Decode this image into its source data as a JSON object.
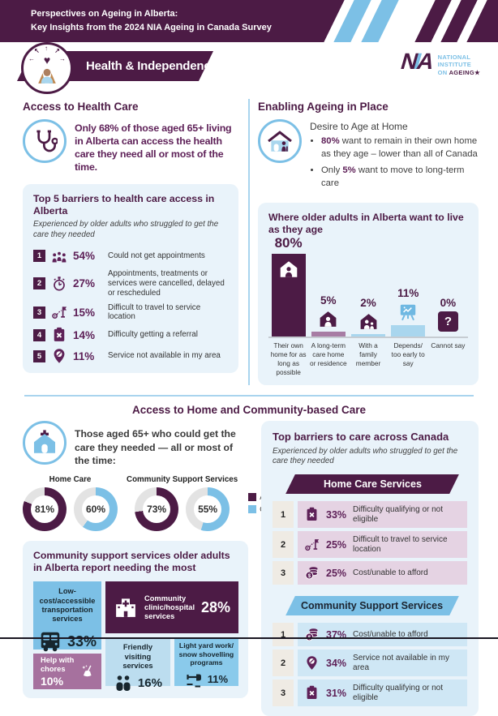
{
  "header": {
    "line1": "Perspectives on Ageing in Alberta:",
    "line2": "Key Insights from the 2024 NIA Ageing in Canada Survey"
  },
  "banner": {
    "title": "Health & Independence"
  },
  "logo": {
    "n": "N",
    "i": "I",
    "a": "A",
    "word1": "NATIONAL",
    "word2": "INSTITUTE",
    "word3_pre": "ON ",
    "word3_bold": "AGEING★"
  },
  "access_health_care": {
    "title": "Access to Health Care",
    "statement": "Only 68% of those aged 65+ living in Alberta can access the health care they need all or most of the time.",
    "barriers": {
      "title": "Top 5 barriers to health care access in Alberta",
      "subtitle": "Experienced by older adults who struggled to get the care they needed",
      "items": [
        {
          "rank": "1",
          "icon": "people-icon",
          "pct": "54%",
          "label": "Could not get appointments"
        },
        {
          "rank": "2",
          "icon": "stopwatch-icon",
          "pct": "27%",
          "label": "Appointments, treatments or services were cancelled, delayed or rescheduled"
        },
        {
          "rank": "3",
          "icon": "travel-route-icon",
          "pct": "15%",
          "label": "Difficult to travel to service location"
        },
        {
          "rank": "4",
          "icon": "clipboard-x-icon",
          "pct": "14%",
          "label": "Difficulty getting a referral"
        },
        {
          "rank": "5",
          "icon": "pin-slash-icon",
          "pct": "11%",
          "label": "Service not available in my area"
        }
      ]
    }
  },
  "ageing_in_place": {
    "title": "Enabling Ageing in Place",
    "lead": "Desire to Age at Home",
    "bullets": [
      {
        "pre": "",
        "bold": "80%",
        "post": " want to remain in their own home as they age – lower than all of Canada"
      },
      {
        "pre": "Only ",
        "bold": "5%",
        "post": " want to move to long-term care"
      }
    ]
  },
  "mid_title": "Access to Home and Community-based Care",
  "home_community": {
    "statement": "Those aged 65+ who could get the care they needed — all or most of the time:",
    "needs_box": {
      "title": "Community support services older adults in Alberta report needing the most",
      "tiles": [
        {
          "label": "Low-cost/accessible transportation services",
          "pct": "33%",
          "icon": "bus-icon"
        },
        {
          "label": "Community clinic/hospital services",
          "pct": "28%",
          "icon": "hospital-icon"
        },
        {
          "label": "Help with chores",
          "pct": "10%",
          "icon": "broom-icon"
        },
        {
          "label": "Friendly visiting services",
          "pct": "16%",
          "icon": "two-people-icon"
        },
        {
          "label": "Light yard work/ snow shovelling programs",
          "pct": "11%",
          "icon": "shovel-icon"
        }
      ]
    }
  },
  "canada_barriers": {
    "title": "Top barriers to care across Canada",
    "subtitle": "Experienced by older adults who struggled to get the care they needed",
    "home_care": {
      "banner": "Home Care Services",
      "items": [
        {
          "rank": "1",
          "icon": "clipboard-x-icon",
          "pct": "33%",
          "label": "Difficulty qualifying or not eligible"
        },
        {
          "rank": "2",
          "icon": "travel-route-icon",
          "pct": "25%",
          "label": "Difficult to travel to service location"
        },
        {
          "rank": "3",
          "icon": "coins-icon",
          "pct": "25%",
          "label": "Cost/unable to afford"
        }
      ]
    },
    "community": {
      "banner": "Community Support Services",
      "items": [
        {
          "rank": "1",
          "icon": "coins-icon",
          "pct": "37%",
          "label": "Cost/unable to afford"
        },
        {
          "rank": "2",
          "icon": "pin-slash-icon",
          "pct": "34%",
          "label": "Service not available in my area"
        },
        {
          "rank": "3",
          "icon": "clipboard-x-icon",
          "pct": "31%",
          "label": "Difficulty qualifying or not eligible"
        }
      ]
    }
  },
  "chart_data": [
    {
      "type": "bar",
      "title": "Where older adults in Alberta want to live as they age",
      "categories": [
        "Their own home for as long as possible",
        "A long-term care home or residence",
        "With a family member",
        "Depends/ too early to say",
        "Cannot say"
      ],
      "values": [
        80,
        5,
        2,
        11,
        0
      ],
      "value_labels": [
        "80%",
        "5%",
        "2%",
        "11%",
        "0%"
      ],
      "unit": "%",
      "bar_colors": [
        "#4C1B45",
        "#A77CA4",
        "#A9D6EE",
        "#A9D6EE",
        "none"
      ],
      "ylim": [
        0,
        100
      ],
      "grid": false
    },
    {
      "type": "pie",
      "subtype": "donut-group",
      "title": "Those aged 65+ who could get the care they needed — all or most of the time:",
      "groups": [
        {
          "label": "Home Care",
          "series": [
            {
              "name": "Alberta",
              "value": 81,
              "label": "81%"
            },
            {
              "name": "Canada",
              "value": 60,
              "label": "60%"
            }
          ]
        },
        {
          "label": "Community Support Services",
          "series": [
            {
              "name": "Alberta",
              "value": 73,
              "label": "73%"
            },
            {
              "name": "Canada",
              "value": 55,
              "label": "55%"
            }
          ]
        }
      ],
      "legend": [
        {
          "name": "Alberta",
          "color": "#4C1B45"
        },
        {
          "name": "Canada",
          "color": "#7CC0E6"
        }
      ],
      "legend_position": "right"
    },
    {
      "type": "bar",
      "title": "Community support services older adults in Alberta report needing the most",
      "categories": [
        "Low-cost/accessible transportation services",
        "Community clinic/hospital services",
        "Friendly visiting services",
        "Light yard work/snow shovelling programs",
        "Help with chores"
      ],
      "values": [
        33,
        28,
        16,
        11,
        10
      ],
      "unit": "%"
    },
    {
      "type": "table",
      "title": "Home Care Services",
      "columns": [
        "rank",
        "percent",
        "barrier"
      ],
      "rows": [
        [
          1,
          33,
          "Difficulty qualifying or not eligible"
        ],
        [
          2,
          25,
          "Difficult to travel to service location"
        ],
        [
          3,
          25,
          "Cost/unable to afford"
        ]
      ]
    },
    {
      "type": "table",
      "title": "Community Support Services",
      "columns": [
        "rank",
        "percent",
        "barrier"
      ],
      "rows": [
        [
          1,
          37,
          "Cost/unable to afford"
        ],
        [
          2,
          34,
          "Service not available in my area"
        ],
        [
          3,
          31,
          "Difficulty qualifying or not eligible"
        ]
      ]
    }
  ],
  "colors": {
    "primary": "#4C1B45",
    "accent_blue": "#7CC0E6",
    "magenta": "#5E2158",
    "panel_bg": "#E9F3FA",
    "mauve": "#A6719E"
  }
}
